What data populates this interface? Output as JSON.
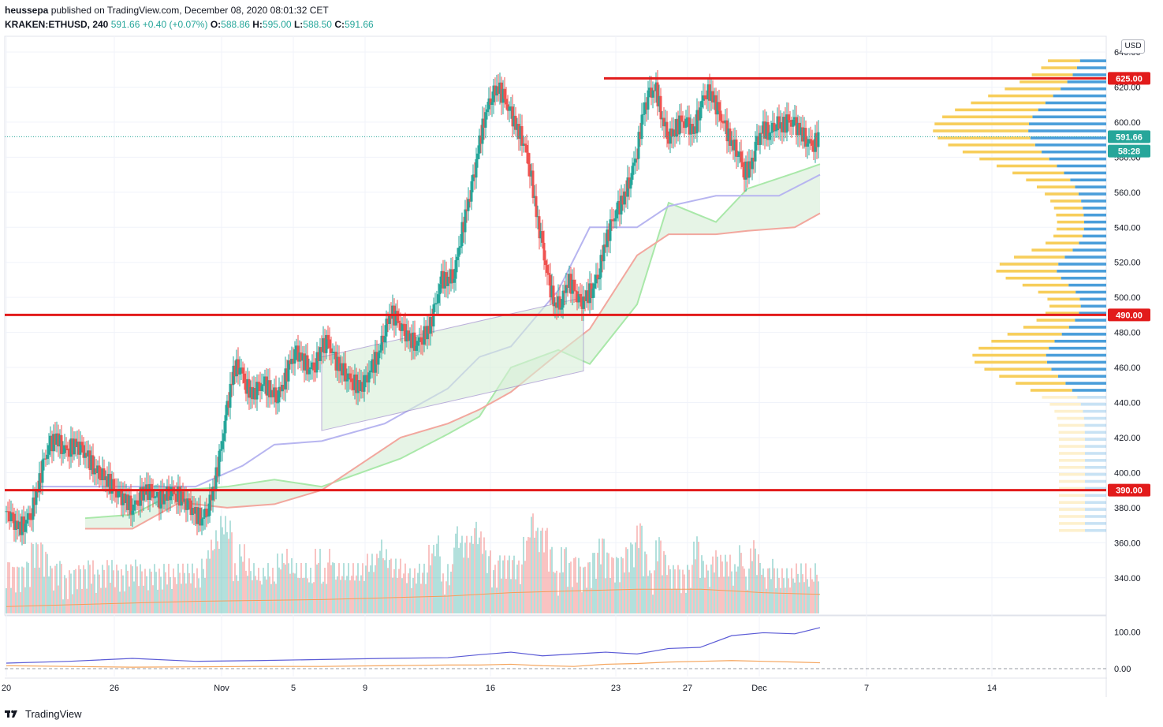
{
  "header": {
    "publisher": "heussepa",
    "published_text": "published on TradingView.com, December 08, 2020 08:01:32 CET",
    "symbol": "KRAKEN:ETHUSD, 240",
    "last": "591.66",
    "change": "+0.40 (+0.07%)",
    "o_label": "O:",
    "o_value": "588.86",
    "h_label": "H:",
    "h_value": "595.00",
    "l_label": "L:",
    "l_value": "588.50",
    "c_label": "C:",
    "c_value": "591.66"
  },
  "currency_button": "USD",
  "footer": {
    "brand": "TradingView"
  },
  "colors": {
    "up": "#26a69a",
    "down": "#ef5350",
    "level": "#e21b1b",
    "base_line": "#b7b5f0",
    "cloud_fill": "#e3f3e3",
    "cloud_lead": "#a9e8a9",
    "cloud_lag": "#f2a79e",
    "vol_ma": "#f39c5b",
    "vp_up": "#f7ce5b",
    "vp_down": "#4a9eda",
    "ind_blue": "#5b5bd6",
    "ind_orange": "#f5a55d"
  },
  "chart_data": {
    "type": "candlestick",
    "symbol": "KRAKEN:ETHUSD",
    "ylim": [
      340,
      660
    ],
    "y_ticks": [
      "640.00",
      "620.00",
      "600.00",
      "580.00",
      "560.00",
      "540.00",
      "520.00",
      "500.00",
      "480.00",
      "460.00",
      "440.00",
      "420.00",
      "400.00",
      "380.00",
      "360.00",
      "340.00"
    ],
    "x_ticks": [
      "20",
      "26",
      "Nov",
      "5",
      "9",
      "16",
      "23",
      "27",
      "Dec",
      "7",
      "14"
    ],
    "price_labels": [
      {
        "text": "625.00",
        "value": 625,
        "color": "#e21b1b"
      },
      {
        "text": "591.66",
        "value": 591.66,
        "color": "#26a69a"
      },
      {
        "text": "58:28",
        "value": 583.5,
        "color": "#26a69a"
      },
      {
        "text": "490.00",
        "value": 490,
        "color": "#e21b1b"
      },
      {
        "text": "390.00",
        "value": 390,
        "color": "#e21b1b"
      }
    ],
    "horizontal_levels": [
      625,
      490,
      390
    ],
    "price_path": [
      [
        0,
        378
      ],
      [
        2,
        372
      ],
      [
        4,
        368
      ],
      [
        6,
        372
      ],
      [
        8,
        378
      ],
      [
        10,
        392
      ],
      [
        12,
        406
      ],
      [
        14,
        416
      ],
      [
        16,
        420
      ],
      [
        18,
        414
      ],
      [
        20,
        414
      ],
      [
        22,
        416
      ],
      [
        24,
        412
      ],
      [
        26,
        408
      ],
      [
        28,
        402
      ],
      [
        30,
        400
      ],
      [
        32,
        396
      ],
      [
        34,
        390
      ],
      [
        36,
        386
      ],
      [
        38,
        384
      ],
      [
        40,
        380
      ],
      [
        42,
        386
      ],
      [
        44,
        390
      ],
      [
        46,
        388
      ],
      [
        48,
        384
      ],
      [
        50,
        386
      ],
      [
        52,
        390
      ],
      [
        54,
        388
      ],
      [
        56,
        384
      ],
      [
        58,
        380
      ],
      [
        60,
        376
      ],
      [
        62,
        374
      ],
      [
        64,
        380
      ],
      [
        66,
        394
      ],
      [
        68,
        412
      ],
      [
        70,
        436
      ],
      [
        72,
        458
      ],
      [
        74,
        462
      ],
      [
        76,
        450
      ],
      [
        78,
        444
      ],
      [
        80,
        448
      ],
      [
        82,
        450
      ],
      [
        84,
        446
      ],
      [
        86,
        444
      ],
      [
        88,
        452
      ],
      [
        90,
        462
      ],
      [
        92,
        468
      ],
      [
        94,
        464
      ],
      [
        96,
        460
      ],
      [
        98,
        462
      ],
      [
        100,
        472
      ],
      [
        102,
        474
      ],
      [
        104,
        464
      ],
      [
        106,
        460
      ],
      [
        108,
        456
      ],
      [
        110,
        452
      ],
      [
        112,
        448
      ],
      [
        114,
        452
      ],
      [
        116,
        460
      ],
      [
        118,
        468
      ],
      [
        120,
        482
      ],
      [
        122,
        492
      ],
      [
        124,
        486
      ],
      [
        126,
        480
      ],
      [
        128,
        476
      ],
      [
        130,
        474
      ],
      [
        132,
        478
      ],
      [
        134,
        482
      ],
      [
        136,
        494
      ],
      [
        138,
        510
      ],
      [
        140,
        510
      ],
      [
        142,
        514
      ],
      [
        144,
        534
      ],
      [
        146,
        550
      ],
      [
        148,
        566
      ],
      [
        150,
        588
      ],
      [
        152,
        606
      ],
      [
        154,
        616
      ],
      [
        156,
        620
      ],
      [
        158,
        612
      ],
      [
        160,
        604
      ],
      [
        162,
        596
      ],
      [
        164,
        590
      ],
      [
        166,
        574
      ],
      [
        168,
        548
      ],
      [
        170,
        528
      ],
      [
        172,
        508
      ],
      [
        174,
        496
      ],
      [
        176,
        498
      ],
      [
        178,
        510
      ],
      [
        180,
        504
      ],
      [
        182,
        496
      ],
      [
        184,
        500
      ],
      [
        186,
        506
      ],
      [
        188,
        516
      ],
      [
        190,
        532
      ],
      [
        192,
        542
      ],
      [
        194,
        550
      ],
      [
        196,
        558
      ],
      [
        198,
        570
      ],
      [
        200,
        584
      ],
      [
        202,
        606
      ],
      [
        204,
        616
      ],
      [
        206,
        618
      ],
      [
        208,
        602
      ],
      [
        210,
        592
      ],
      [
        212,
        596
      ],
      [
        214,
        600
      ],
      [
        216,
        598
      ],
      [
        218,
        594
      ],
      [
        220,
        610
      ],
      [
        222,
        618
      ],
      [
        224,
        614
      ],
      [
        226,
        604
      ],
      [
        228,
        596
      ],
      [
        230,
        588
      ],
      [
        232,
        584
      ],
      [
        234,
        572
      ],
      [
        236,
        574
      ],
      [
        238,
        588
      ],
      [
        240,
        596
      ],
      [
        242,
        594
      ],
      [
        244,
        600
      ],
      [
        246,
        598
      ],
      [
        248,
        600
      ],
      [
        250,
        598
      ],
      [
        252,
        594
      ],
      [
        254,
        590
      ],
      [
        256,
        588
      ],
      [
        258,
        592
      ]
    ],
    "volume_ma": [
      [
        0,
        348
      ],
      [
        60,
        351
      ],
      [
        100,
        352
      ],
      [
        140,
        354
      ],
      [
        160,
        356
      ],
      [
        180,
        357
      ],
      [
        200,
        358
      ],
      [
        220,
        358
      ],
      [
        240,
        356
      ],
      [
        258,
        355
      ]
    ],
    "indicator": {
      "ylim": [
        0,
        120
      ],
      "y_ticks": [
        "100.00",
        "0.00"
      ],
      "blue": [
        [
          0,
          15
        ],
        [
          20,
          20
        ],
        [
          40,
          28
        ],
        [
          60,
          20
        ],
        [
          80,
          22
        ],
        [
          100,
          25
        ],
        [
          120,
          28
        ],
        [
          140,
          30
        ],
        [
          150,
          38
        ],
        [
          160,
          45
        ],
        [
          170,
          35
        ],
        [
          180,
          40
        ],
        [
          190,
          45
        ],
        [
          200,
          40
        ],
        [
          210,
          55
        ],
        [
          220,
          58
        ],
        [
          230,
          90
        ],
        [
          240,
          98
        ],
        [
          250,
          95
        ],
        [
          258,
          112
        ]
      ],
      "orange": [
        [
          0,
          8
        ],
        [
          20,
          6
        ],
        [
          40,
          4
        ],
        [
          60,
          5
        ],
        [
          80,
          6
        ],
        [
          100,
          6
        ],
        [
          120,
          8
        ],
        [
          140,
          10
        ],
        [
          150,
          10
        ],
        [
          160,
          12
        ],
        [
          170,
          8
        ],
        [
          180,
          6
        ],
        [
          190,
          12
        ],
        [
          200,
          14
        ],
        [
          210,
          18
        ],
        [
          220,
          20
        ],
        [
          230,
          22
        ],
        [
          240,
          20
        ],
        [
          250,
          18
        ],
        [
          258,
          16
        ]
      ]
    }
  }
}
